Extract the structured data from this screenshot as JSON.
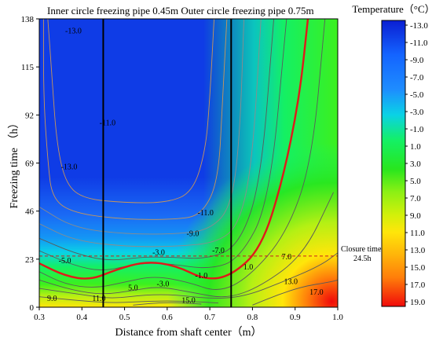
{
  "chart_data": {
    "type": "heatmap",
    "title": "Inner circle freezing pipe 0.45m   Outer circle freezing pipe 0.75m",
    "xlabel": "Distance from shaft center（m）",
    "ylabel": "Freezing time （h）",
    "xlim": [
      0.3,
      1.0
    ],
    "ylim": [
      0,
      138
    ],
    "x_ticks": [
      "0.3",
      "0.4",
      "0.5",
      "0.6",
      "0.7",
      "0.8",
      "0.9",
      "1.0"
    ],
    "y_ticks": [
      "0",
      "23",
      "46",
      "69",
      "92",
      "115",
      "138"
    ],
    "colorbar": {
      "title": "Temperature（°C）",
      "labels": [
        "-13.0",
        "-11.0",
        "-9.0",
        "-7.0",
        "-5.0",
        "-3.0",
        "-1.0",
        "1.0",
        "3.0",
        "5.0",
        "7.0",
        "9.0",
        "11.0",
        "13.0",
        "15.0",
        "17.0",
        "19.0"
      ],
      "colors": [
        "#0a1ed2",
        "#0a3cf0",
        "#1464ff",
        "#1e8cff",
        "#14b4f0",
        "#0ad2e6",
        "#0ae6b4",
        "#14f064",
        "#1ee628",
        "#3cf01e",
        "#8cf014",
        "#d2f00a",
        "#ffe60a",
        "#ffb40a",
        "#ff7d0a",
        "#ff460a",
        "#f00a0a"
      ]
    },
    "freezing_pipes_x": [
      0.45,
      0.75
    ],
    "closure_line": {
      "time": 24.5,
      "label": "Closure time\n24.5h"
    },
    "contour_labels": [
      {
        "text": "-13.0",
        "x": 0.38,
        "y": 131
      },
      {
        "text": "-11.0",
        "x": 0.46,
        "y": 87
      },
      {
        "text": "-13.0",
        "x": 0.37,
        "y": 66
      },
      {
        "text": "-11.0",
        "x": 0.69,
        "y": 44
      },
      {
        "text": "-9.0",
        "x": 0.66,
        "y": 34
      },
      {
        "text": "-7.0",
        "x": 0.72,
        "y": 26
      },
      {
        "text": "-3.0",
        "x": 0.58,
        "y": 25
      },
      {
        "text": "-5.0",
        "x": 0.36,
        "y": 21
      },
      {
        "text": "-1.0",
        "x": 0.68,
        "y": 14
      },
      {
        "text": "-3.0",
        "x": 0.59,
        "y": 10
      },
      {
        "text": "1.0",
        "x": 0.79,
        "y": 18
      },
      {
        "text": "7.0",
        "x": 0.88,
        "y": 23
      },
      {
        "text": "5.0",
        "x": 0.52,
        "y": 8
      },
      {
        "text": "9.0",
        "x": 0.33,
        "y": 3
      },
      {
        "text": "11.0",
        "x": 0.44,
        "y": 3
      },
      {
        "text": "15.0",
        "x": 0.65,
        "y": 2
      },
      {
        "text": "13.0",
        "x": 0.89,
        "y": 11
      },
      {
        "text": "17.0",
        "x": 0.95,
        "y": 6
      }
    ],
    "contours": [
      {
        "level": -13.0,
        "color": "#c8965a",
        "points": [
          [
            0.32,
            138
          ],
          [
            0.33,
            110
          ],
          [
            0.34,
            80
          ],
          [
            0.36,
            60
          ],
          [
            0.4,
            52
          ],
          [
            0.5,
            50
          ],
          [
            0.6,
            50
          ],
          [
            0.66,
            55
          ],
          [
            0.69,
            75
          ],
          [
            0.7,
            100
          ],
          [
            0.71,
            138
          ]
        ]
      },
      {
        "level": -11.0,
        "color": "#c8965a",
        "points": [
          [
            0.31,
            138
          ],
          [
            0.31,
            100
          ],
          [
            0.32,
            70
          ],
          [
            0.33,
            52
          ],
          [
            0.38,
            45
          ],
          [
            0.5,
            42
          ],
          [
            0.62,
            42
          ],
          [
            0.68,
            44
          ],
          [
            0.72,
            60
          ],
          [
            0.73,
            100
          ],
          [
            0.74,
            138
          ]
        ]
      },
      {
        "level": -9.0,
        "color": "#8c8c8c",
        "points": [
          [
            0.3,
            48
          ],
          [
            0.38,
            38
          ],
          [
            0.5,
            35
          ],
          [
            0.62,
            35
          ],
          [
            0.7,
            37
          ],
          [
            0.75,
            48
          ],
          [
            0.77,
            80
          ],
          [
            0.78,
            138
          ]
        ]
      },
      {
        "level": -7.0,
        "color": "#8c8c8c",
        "points": [
          [
            0.3,
            40
          ],
          [
            0.38,
            32
          ],
          [
            0.5,
            29
          ],
          [
            0.62,
            29
          ],
          [
            0.72,
            31
          ],
          [
            0.77,
            40
          ],
          [
            0.8,
            70
          ],
          [
            0.82,
            138
          ]
        ]
      },
      {
        "level": -5.0,
        "color": "#5a5a5a",
        "points": [
          [
            0.3,
            33
          ],
          [
            0.38,
            26
          ],
          [
            0.46,
            22
          ],
          [
            0.54,
            24
          ],
          [
            0.6,
            24
          ],
          [
            0.7,
            23
          ],
          [
            0.77,
            30
          ],
          [
            0.82,
            60
          ],
          [
            0.85,
            138
          ]
        ]
      },
      {
        "level": -3.0,
        "color": "#5a5a5a",
        "points": [
          [
            0.3,
            27
          ],
          [
            0.38,
            20
          ],
          [
            0.45,
            17
          ],
          [
            0.53,
            21
          ],
          [
            0.6,
            21
          ],
          [
            0.7,
            18
          ],
          [
            0.77,
            23
          ],
          [
            0.84,
            50
          ],
          [
            0.88,
            138
          ]
        ]
      },
      {
        "level": -1.0,
        "color": "#e01a1a",
        "points": [
          [
            0.3,
            21
          ],
          [
            0.36,
            15
          ],
          [
            0.42,
            13
          ],
          [
            0.48,
            18
          ],
          [
            0.55,
            22
          ],
          [
            0.62,
            20
          ],
          [
            0.69,
            13
          ],
          [
            0.75,
            15
          ],
          [
            0.82,
            28
          ],
          [
            0.87,
            60
          ],
          [
            0.91,
            100
          ],
          [
            0.93,
            138
          ]
        ]
      },
      {
        "level": 1.0,
        "color": "#5a5a5a",
        "points": [
          [
            0.3,
            17
          ],
          [
            0.36,
            11
          ],
          [
            0.43,
            9
          ],
          [
            0.5,
            12
          ],
          [
            0.57,
            15
          ],
          [
            0.65,
            12
          ],
          [
            0.72,
            7
          ],
          [
            0.79,
            14
          ],
          [
            0.88,
            35
          ],
          [
            0.94,
            70
          ],
          [
            0.97,
            138
          ]
        ]
      },
      {
        "level": 3.0,
        "color": "#5a5a5a",
        "points": [
          [
            0.3,
            13
          ],
          [
            0.38,
            8
          ],
          [
            0.45,
            6
          ],
          [
            0.52,
            8
          ],
          [
            0.58,
            10
          ],
          [
            0.66,
            7
          ],
          [
            0.74,
            4
          ],
          [
            0.82,
            10
          ],
          [
            0.92,
            25
          ],
          [
            0.99,
            55
          ]
        ]
      },
      {
        "level": 5.0,
        "color": "#5a5a5a",
        "points": [
          [
            0.3,
            9
          ],
          [
            0.4,
            6
          ],
          [
            0.47,
            4
          ],
          [
            0.55,
            6
          ],
          [
            0.62,
            6
          ],
          [
            0.7,
            4
          ],
          [
            0.78,
            5
          ],
          [
            0.87,
            12
          ],
          [
            0.96,
            20
          ],
          [
            1.0,
            26
          ]
        ]
      },
      {
        "level": 9.0,
        "color": "#5a5a5a",
        "points": [
          [
            0.3,
            5
          ],
          [
            0.4,
            3
          ],
          [
            0.48,
            2
          ],
          [
            0.56,
            3
          ],
          [
            0.64,
            3
          ],
          [
            0.72,
            2
          ]
        ]
      },
      {
        "level": 13.0,
        "color": "#5a5a5a",
        "points": [
          [
            0.8,
            1
          ],
          [
            0.86,
            6
          ],
          [
            0.92,
            10
          ],
          [
            0.98,
            12
          ],
          [
            1.0,
            13
          ]
        ]
      },
      {
        "level": 15.0,
        "color": "#5a5a5a",
        "points": [
          [
            0.52,
            1
          ],
          [
            0.6,
            2.5
          ],
          [
            0.68,
            1.5
          ]
        ]
      }
    ]
  }
}
